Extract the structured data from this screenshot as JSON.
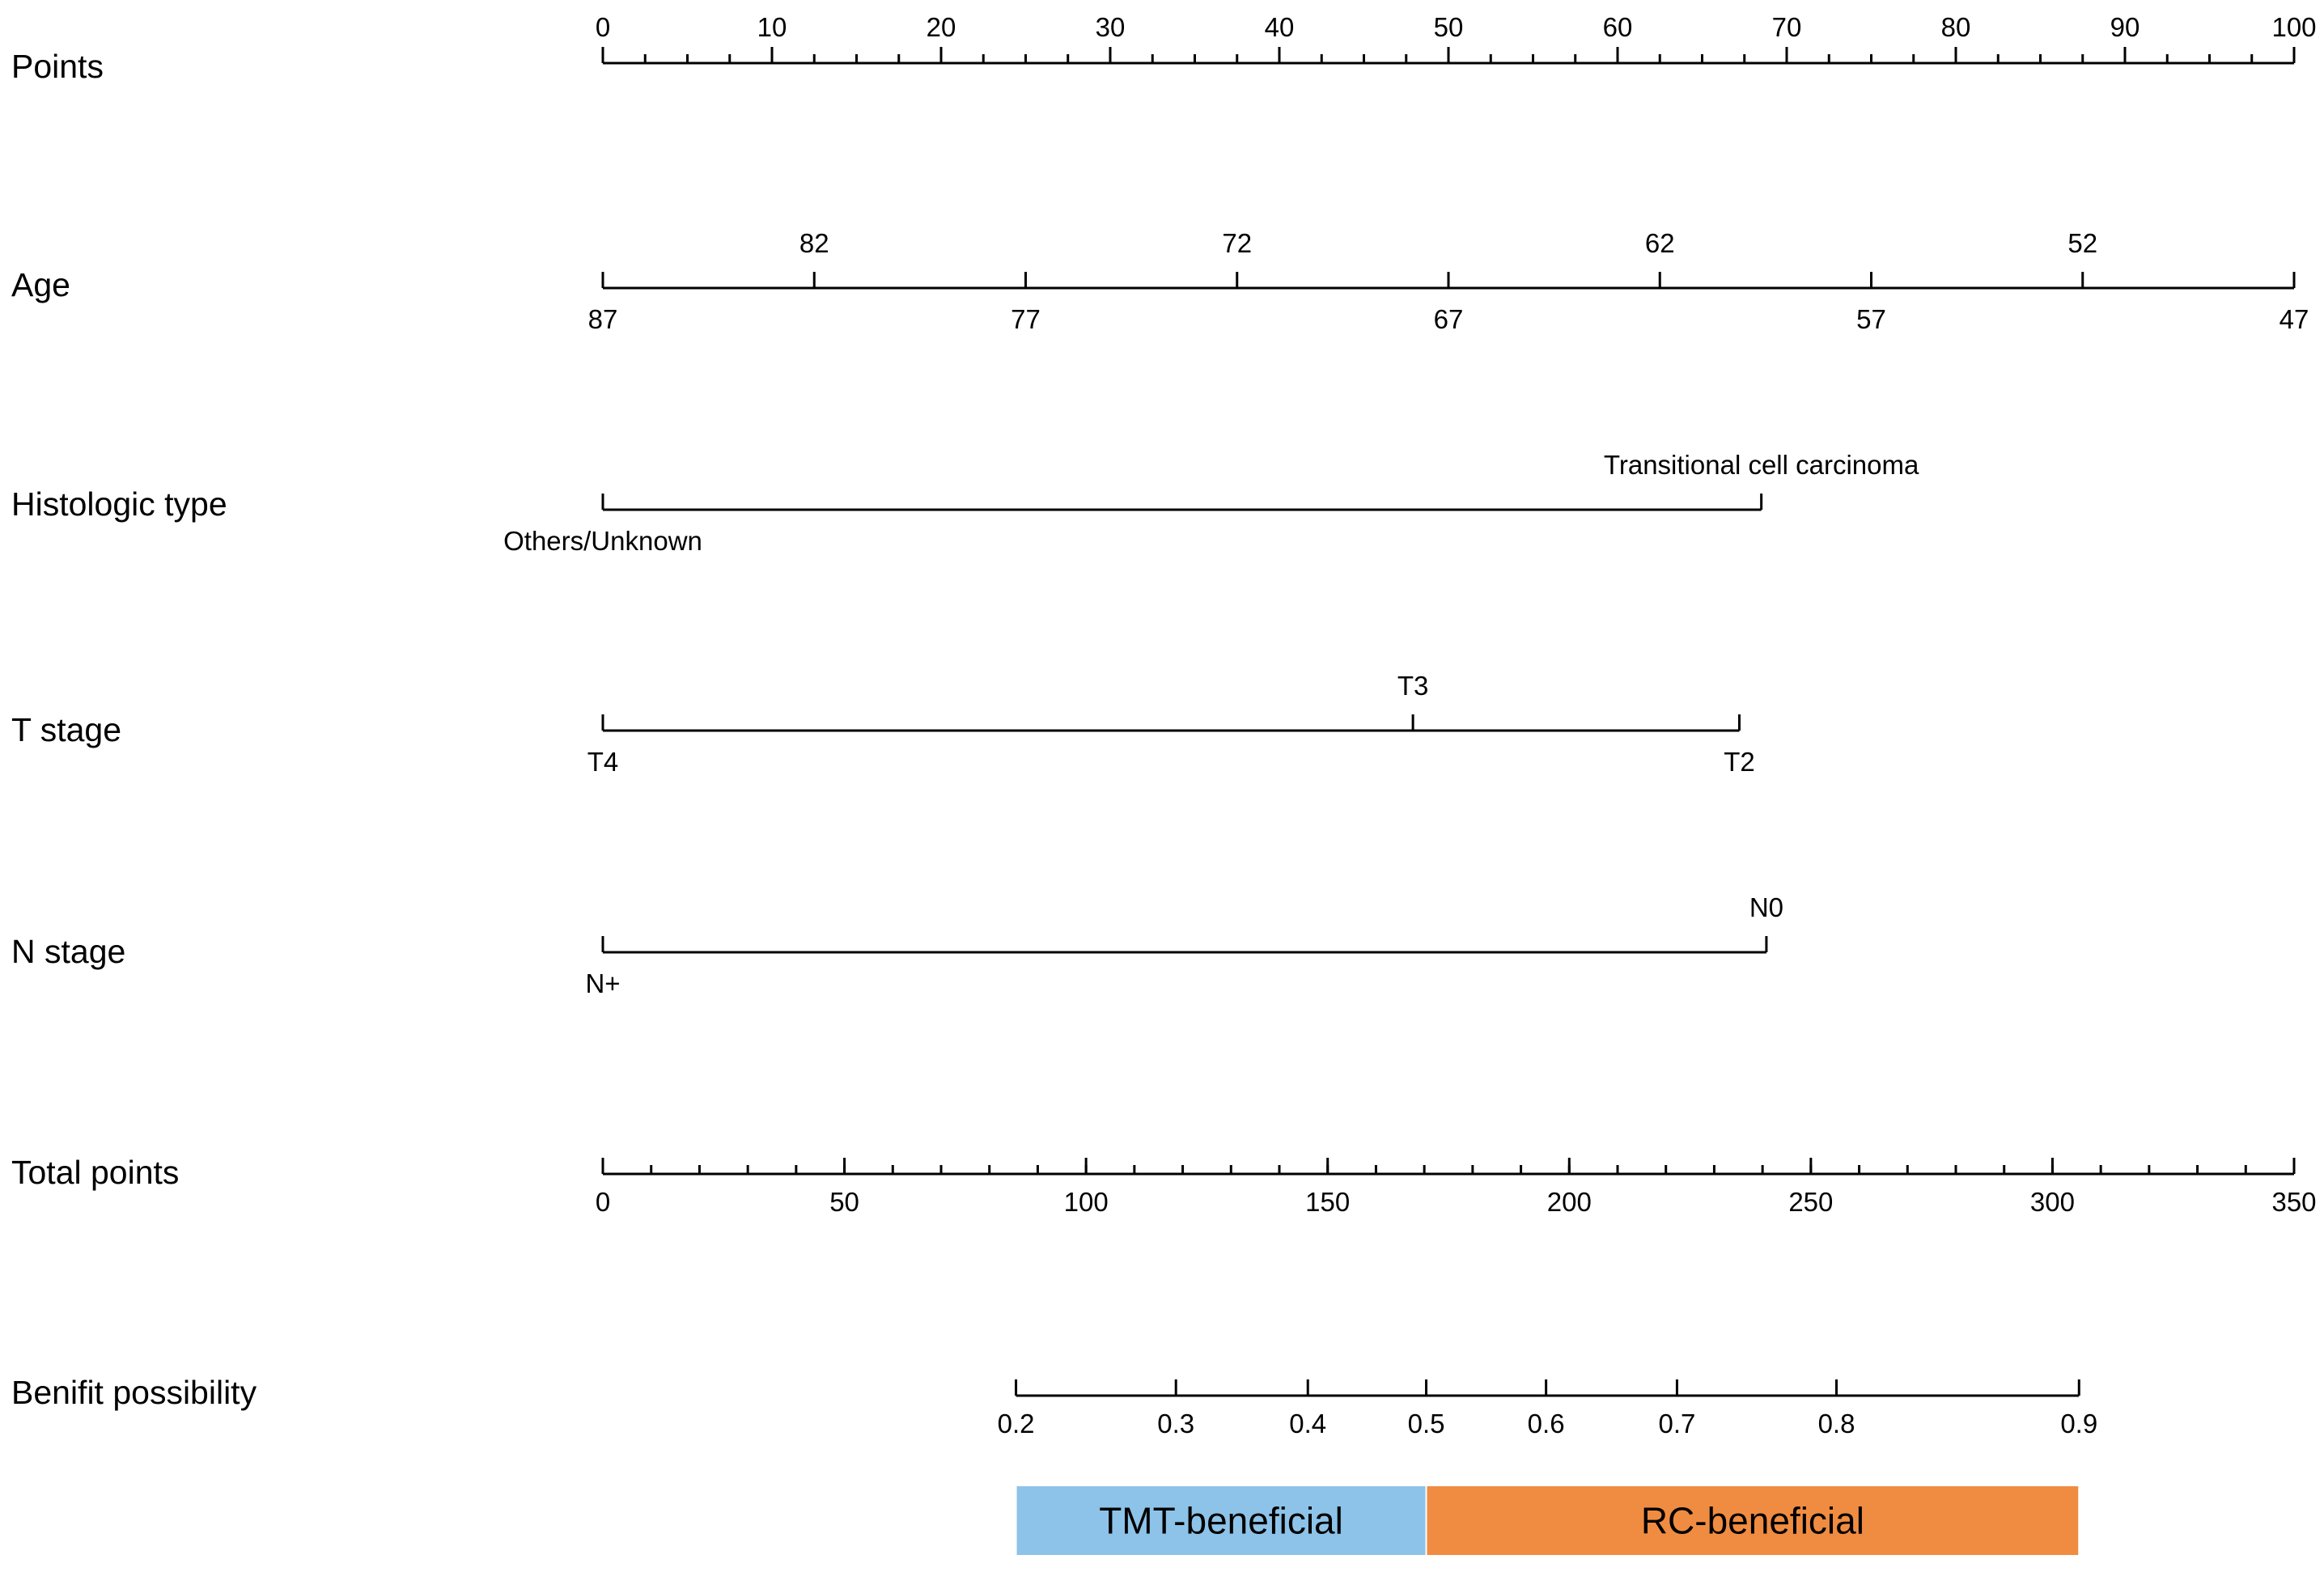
{
  "chart_data": {
    "type": "nomogram",
    "rows": [
      {
        "id": "points",
        "label": "Points",
        "scale": "points",
        "ticks": [
          {
            "v": 0,
            "t": "0"
          },
          {
            "v": 10,
            "t": "10"
          },
          {
            "v": 20,
            "t": "20"
          },
          {
            "v": 30,
            "t": "30"
          },
          {
            "v": 40,
            "t": "40"
          },
          {
            "v": 50,
            "t": "50"
          },
          {
            "v": 60,
            "t": "60"
          },
          {
            "v": 70,
            "t": "70"
          },
          {
            "v": 80,
            "t": "80"
          },
          {
            "v": 90,
            "t": "90"
          },
          {
            "v": 100,
            "t": "100"
          }
        ],
        "minor_step": 2.5
      },
      {
        "id": "age",
        "label": "Age",
        "scale": "points",
        "range": [
          0,
          100
        ],
        "ticks": [
          {
            "v": 0,
            "t": "87",
            "side": "below"
          },
          {
            "v": 12.5,
            "t": "82",
            "side": "above"
          },
          {
            "v": 25,
            "t": "77",
            "side": "below"
          },
          {
            "v": 37.5,
            "t": "72",
            "side": "above"
          },
          {
            "v": 50,
            "t": "67",
            "side": "below"
          },
          {
            "v": 62.5,
            "t": "62",
            "side": "above"
          },
          {
            "v": 75,
            "t": "57",
            "side": "below"
          },
          {
            "v": 87.5,
            "t": "52",
            "side": "above"
          },
          {
            "v": 100,
            "t": "47",
            "side": "below"
          }
        ]
      },
      {
        "id": "histologic",
        "label": "Histologic type",
        "scale": "points",
        "range": [
          0,
          68.5
        ],
        "ticks": [
          {
            "v": 0,
            "t": "Others/Unknown",
            "side": "below"
          },
          {
            "v": 68.5,
            "t": "Transitional cell carcinoma",
            "side": "above"
          }
        ]
      },
      {
        "id": "tstage",
        "label": "T stage",
        "scale": "points",
        "range": [
          0,
          67.2
        ],
        "ticks": [
          {
            "v": 0,
            "t": "T4",
            "side": "below"
          },
          {
            "v": 47.9,
            "t": "T3",
            "side": "above"
          },
          {
            "v": 67.2,
            "t": "T2",
            "side": "below"
          }
        ]
      },
      {
        "id": "nstage",
        "label": "N stage",
        "scale": "points",
        "range": [
          0,
          68.8
        ],
        "ticks": [
          {
            "v": 0,
            "t": "N+",
            "side": "below"
          },
          {
            "v": 68.8,
            "t": "N0",
            "side": "above"
          }
        ]
      },
      {
        "id": "total",
        "label": "Total points",
        "scale": "total",
        "ticks": [
          {
            "v": 0,
            "t": "0"
          },
          {
            "v": 50,
            "t": "50"
          },
          {
            "v": 100,
            "t": "100"
          },
          {
            "v": 150,
            "t": "150"
          },
          {
            "v": 200,
            "t": "200"
          },
          {
            "v": 250,
            "t": "250"
          },
          {
            "v": 300,
            "t": "300"
          },
          {
            "v": 350,
            "t": "350"
          }
        ],
        "minor_step": 10
      },
      {
        "id": "benefit",
        "label": "Benifit possibility",
        "scale": "total",
        "range": [
          85.5,
          305.5
        ],
        "ticks": [
          {
            "v": 85.5,
            "t": "0.2"
          },
          {
            "v": 118.6,
            "t": "0.3"
          },
          {
            "v": 145.9,
            "t": "0.4"
          },
          {
            "v": 170.4,
            "t": "0.5"
          },
          {
            "v": 195.2,
            "t": "0.6"
          },
          {
            "v": 222.3,
            "t": "0.7"
          },
          {
            "v": 255.3,
            "t": "0.8"
          },
          {
            "v": 305.5,
            "t": "0.9"
          }
        ]
      }
    ],
    "points_range": [
      0,
      100
    ],
    "total_range": [
      0,
      350
    ],
    "regions": [
      {
        "label": "TMT-beneficial",
        "from": 0.2,
        "to": 0.5,
        "from_total": 85.5,
        "to_total": 170.4,
        "color": "#8dc3e8"
      },
      {
        "label": "RC-beneficial",
        "from": 0.5,
        "to": 0.9,
        "from_total": 170.4,
        "to_total": 305.5,
        "color": "#f08c41"
      }
    ]
  }
}
